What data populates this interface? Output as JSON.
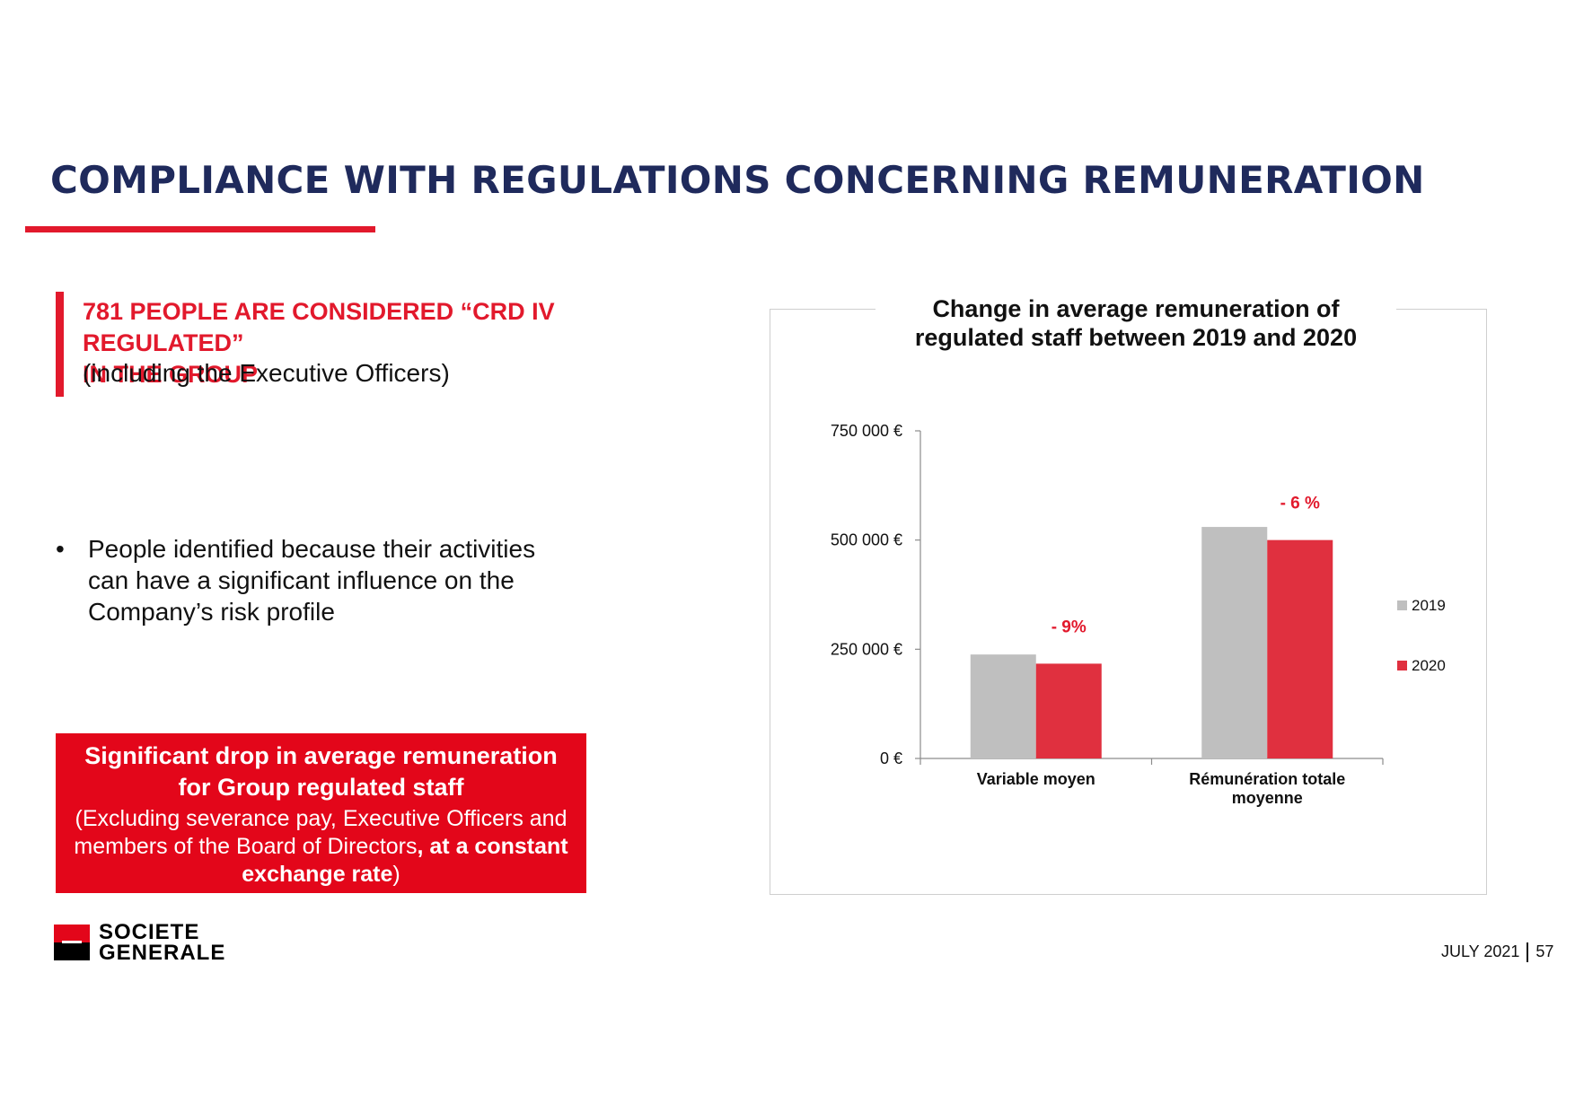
{
  "title": "COMPLIANCE WITH REGULATIONS CONCERNING REMUNERATION",
  "callout": {
    "line1": "781 PEOPLE ARE CONSIDERED “CRD IV REGULATED”",
    "line2": "IN THE GROUP",
    "sub": "(including the Executive Officers)"
  },
  "bullet": {
    "marker": "•",
    "lines": [
      "People identified because their activities",
      "can have a significant influence on the",
      "Company’s risk profile"
    ]
  },
  "redbox": {
    "heading": [
      "Significant drop in average remuneration",
      "for Group regulated staff"
    ],
    "body_line1": "(Excluding severance pay, Executive Officers and",
    "body_line2_normal": "members of the Board of Directors",
    "body_line2_bold": ", at a constant",
    "body_line3_bold": "exchange rate",
    "body_line3_end": ")"
  },
  "chart_data": {
    "type": "bar",
    "title": [
      "Change in average remuneration of",
      "regulated staff between 2019 and 2020"
    ],
    "categories": [
      [
        "Variable moyen"
      ],
      [
        "Rémunération totale",
        "moyenne"
      ]
    ],
    "series": [
      {
        "name": "2019",
        "values": [
          238000,
          530000
        ],
        "color": "#bfbfbf"
      },
      {
        "name": "2020",
        "values": [
          217000,
          500000
        ],
        "color": "#e0303f"
      }
    ],
    "annotations": [
      "- 9%",
      "- 6 %"
    ],
    "annotation_color": "#e2192c",
    "yticks": [
      {
        "value": 0,
        "label": "0 €"
      },
      {
        "value": 250000,
        "label": "250 000 €"
      },
      {
        "value": 500000,
        "label": "500 000 €"
      },
      {
        "value": 750000,
        "label": "750 000 €"
      }
    ],
    "ylim": [
      0,
      750000
    ],
    "legend_position": "right"
  },
  "logo": {
    "line1": "SOCIETE",
    "line2": "GENERALE"
  },
  "footer": {
    "date": "JULY 2021",
    "page": "57"
  }
}
